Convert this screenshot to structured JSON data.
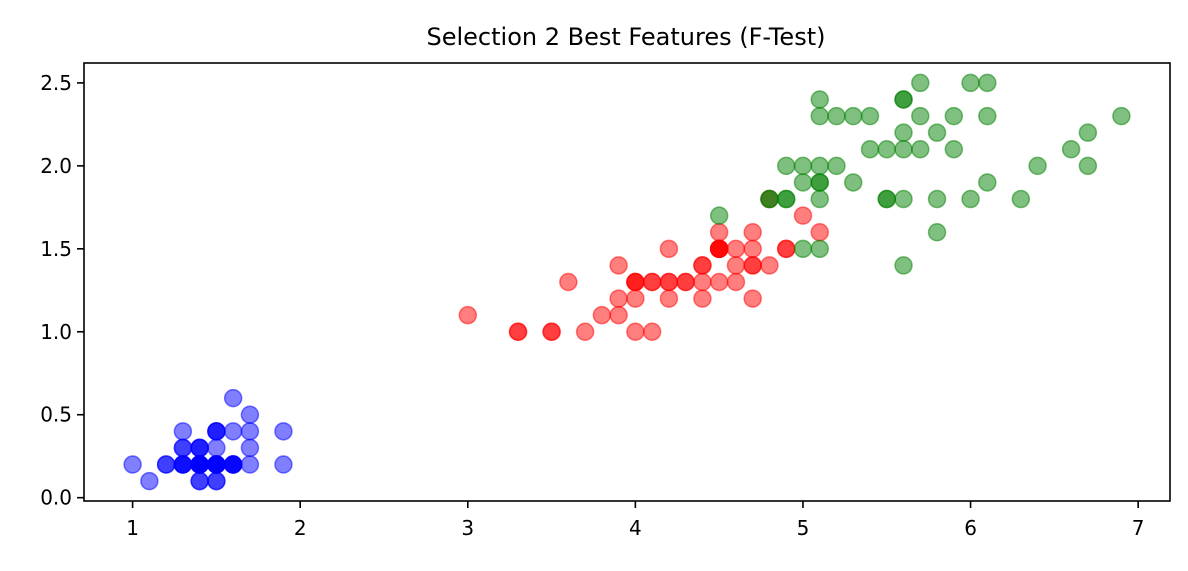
{
  "chart_data": {
    "type": "scatter",
    "title": "Selection 2 Best Features (F-Test)",
    "xlabel": "",
    "ylabel": "",
    "xlim": [
      0.71,
      7.19
    ],
    "ylim": [
      -0.02,
      2.62
    ],
    "xticks": [
      1,
      2,
      3,
      4,
      5,
      6,
      7
    ],
    "xtick_labels": [
      "1",
      "2",
      "3",
      "4",
      "5",
      "6",
      "7"
    ],
    "yticks": [
      0.0,
      0.5,
      1.0,
      1.5,
      2.0,
      2.5
    ],
    "ytick_labels": [
      "0.0",
      "0.5",
      "1.0",
      "1.5",
      "2.0",
      "2.5"
    ],
    "grid": false,
    "marker_opacity": 0.5,
    "series": [
      {
        "color": "#0000ff",
        "points": [
          [
            1.4,
            0.2
          ],
          [
            1.4,
            0.2
          ],
          [
            1.3,
            0.2
          ],
          [
            1.5,
            0.2
          ],
          [
            1.4,
            0.2
          ],
          [
            1.7,
            0.4
          ],
          [
            1.4,
            0.3
          ],
          [
            1.5,
            0.2
          ],
          [
            1.4,
            0.2
          ],
          [
            1.5,
            0.1
          ],
          [
            1.5,
            0.2
          ],
          [
            1.6,
            0.2
          ],
          [
            1.4,
            0.1
          ],
          [
            1.1,
            0.1
          ],
          [
            1.2,
            0.2
          ],
          [
            1.5,
            0.4
          ],
          [
            1.3,
            0.4
          ],
          [
            1.4,
            0.3
          ],
          [
            1.7,
            0.3
          ],
          [
            1.5,
            0.3
          ],
          [
            1.7,
            0.2
          ],
          [
            1.5,
            0.4
          ],
          [
            1.0,
            0.2
          ],
          [
            1.7,
            0.5
          ],
          [
            1.9,
            0.2
          ],
          [
            1.6,
            0.2
          ],
          [
            1.6,
            0.4
          ],
          [
            1.5,
            0.2
          ],
          [
            1.4,
            0.2
          ],
          [
            1.6,
            0.2
          ],
          [
            1.6,
            0.2
          ],
          [
            1.5,
            0.4
          ],
          [
            1.5,
            0.1
          ],
          [
            1.4,
            0.2
          ],
          [
            1.5,
            0.2
          ],
          [
            1.2,
            0.2
          ],
          [
            1.3,
            0.2
          ],
          [
            1.4,
            0.1
          ],
          [
            1.3,
            0.2
          ],
          [
            1.5,
            0.2
          ],
          [
            1.3,
            0.3
          ],
          [
            1.3,
            0.3
          ],
          [
            1.3,
            0.2
          ],
          [
            1.6,
            0.6
          ],
          [
            1.9,
            0.4
          ],
          [
            1.4,
            0.3
          ],
          [
            1.6,
            0.2
          ],
          [
            1.4,
            0.2
          ],
          [
            1.5,
            0.2
          ],
          [
            1.4,
            0.2
          ]
        ]
      },
      {
        "color": "#ff0000",
        "points": [
          [
            4.7,
            1.4
          ],
          [
            4.5,
            1.5
          ],
          [
            4.9,
            1.5
          ],
          [
            4.0,
            1.3
          ],
          [
            4.6,
            1.5
          ],
          [
            4.5,
            1.3
          ],
          [
            4.7,
            1.6
          ],
          [
            3.3,
            1.0
          ],
          [
            4.6,
            1.3
          ],
          [
            3.9,
            1.4
          ],
          [
            3.5,
            1.0
          ],
          [
            4.2,
            1.5
          ],
          [
            4.0,
            1.0
          ],
          [
            4.7,
            1.4
          ],
          [
            3.6,
            1.3
          ],
          [
            4.4,
            1.4
          ],
          [
            4.5,
            1.5
          ],
          [
            4.1,
            1.0
          ],
          [
            4.5,
            1.5
          ],
          [
            3.9,
            1.1
          ],
          [
            4.8,
            1.8
          ],
          [
            4.0,
            1.3
          ],
          [
            4.9,
            1.5
          ],
          [
            4.7,
            1.2
          ],
          [
            4.3,
            1.3
          ],
          [
            4.4,
            1.4
          ],
          [
            4.8,
            1.4
          ],
          [
            5.0,
            1.7
          ],
          [
            4.5,
            1.5
          ],
          [
            3.5,
            1.0
          ],
          [
            3.8,
            1.1
          ],
          [
            3.7,
            1.0
          ],
          [
            3.9,
            1.2
          ],
          [
            5.1,
            1.6
          ],
          [
            4.5,
            1.5
          ],
          [
            4.5,
            1.6
          ],
          [
            4.7,
            1.5
          ],
          [
            4.4,
            1.3
          ],
          [
            4.1,
            1.3
          ],
          [
            4.0,
            1.3
          ],
          [
            4.4,
            1.2
          ],
          [
            4.6,
            1.4
          ],
          [
            4.0,
            1.2
          ],
          [
            3.3,
            1.0
          ],
          [
            4.2,
            1.3
          ],
          [
            4.2,
            1.2
          ],
          [
            4.2,
            1.3
          ],
          [
            4.3,
            1.3
          ],
          [
            3.0,
            1.1
          ],
          [
            4.1,
            1.3
          ]
        ]
      },
      {
        "color": "#008000",
        "points": [
          [
            6.0,
            2.5
          ],
          [
            5.1,
            1.9
          ],
          [
            5.9,
            2.1
          ],
          [
            5.6,
            1.8
          ],
          [
            5.8,
            2.2
          ],
          [
            6.6,
            2.1
          ],
          [
            4.5,
            1.7
          ],
          [
            6.3,
            1.8
          ],
          [
            5.8,
            1.8
          ],
          [
            6.1,
            2.5
          ],
          [
            5.1,
            2.0
          ],
          [
            5.3,
            1.9
          ],
          [
            5.5,
            2.1
          ],
          [
            5.0,
            2.0
          ],
          [
            5.1,
            2.4
          ],
          [
            5.3,
            2.3
          ],
          [
            5.5,
            1.8
          ],
          [
            6.7,
            2.2
          ],
          [
            6.9,
            2.3
          ],
          [
            5.0,
            1.5
          ],
          [
            5.7,
            2.3
          ],
          [
            4.9,
            2.0
          ],
          [
            6.7,
            2.0
          ],
          [
            4.9,
            1.8
          ],
          [
            5.7,
            2.1
          ],
          [
            6.0,
            1.8
          ],
          [
            4.8,
            1.8
          ],
          [
            4.9,
            1.8
          ],
          [
            5.6,
            2.1
          ],
          [
            5.8,
            1.6
          ],
          [
            6.1,
            1.9
          ],
          [
            6.4,
            2.0
          ],
          [
            5.6,
            2.2
          ],
          [
            5.1,
            1.5
          ],
          [
            5.6,
            1.4
          ],
          [
            6.1,
            2.3
          ],
          [
            5.6,
            2.4
          ],
          [
            5.5,
            1.8
          ],
          [
            4.8,
            1.8
          ],
          [
            5.4,
            2.1
          ],
          [
            5.6,
            2.4
          ],
          [
            5.1,
            2.3
          ],
          [
            5.1,
            1.9
          ],
          [
            5.9,
            2.3
          ],
          [
            5.7,
            2.5
          ],
          [
            5.2,
            2.3
          ],
          [
            5.0,
            1.9
          ],
          [
            5.2,
            2.0
          ],
          [
            5.4,
            2.3
          ],
          [
            5.1,
            1.8
          ]
        ]
      }
    ]
  }
}
